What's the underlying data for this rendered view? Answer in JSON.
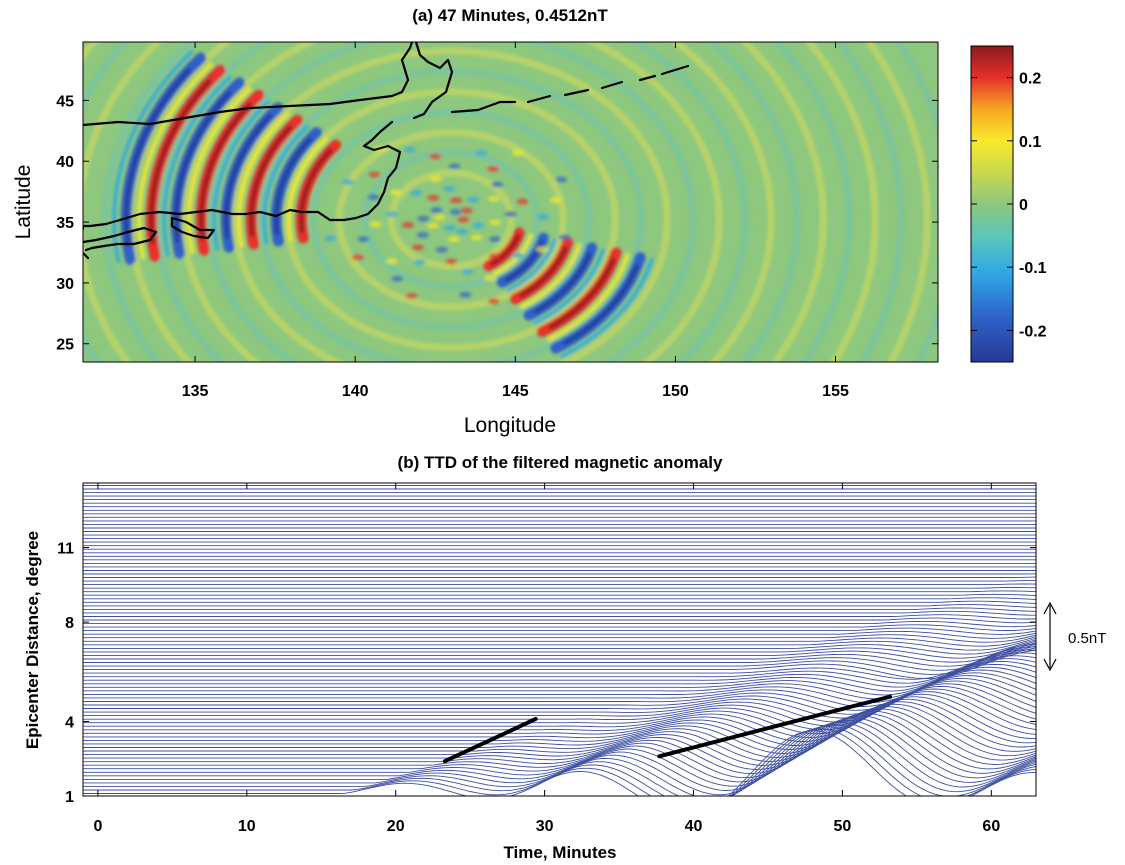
{
  "chart_data": [
    {
      "type": "heatmap",
      "title": "(a) 47 Minutes, 0.4512nT",
      "xlabel": "Longitude",
      "ylabel": "Latitude",
      "xlim": [
        131.5,
        158.2
      ],
      "ylim": [
        23.5,
        49.8
      ],
      "xticks": [
        135,
        140,
        145,
        150,
        155
      ],
      "yticks": [
        25,
        30,
        35,
        40,
        45
      ],
      "colormap": "jet",
      "colorbar": {
        "range": [
          -0.25,
          0.25
        ],
        "ticks": [
          0.2,
          0.1,
          0,
          -0.1,
          -0.2
        ],
        "tick_labels": [
          "0.2",
          "0.1",
          "0",
          "-0.1",
          "-0.2"
        ]
      },
      "epicenter": {
        "lon": 143.0,
        "lat": 35.2
      },
      "colors": {
        "background": "#8ec77e",
        "coast": "#000000"
      }
    },
    {
      "type": "line",
      "title": "(b) TTD of the filtered magnetic anomaly",
      "xlabel": "Time, Minutes",
      "ylabel": "Epicenter Distance, degree",
      "xlim": [
        -1,
        63
      ],
      "ylim": [
        1,
        13.6
      ],
      "xticks": [
        0,
        10,
        20,
        30,
        40,
        50,
        60
      ],
      "yticks": [
        1,
        4,
        8,
        11
      ],
      "trace_count": 88,
      "trace_color": "#3d4fa0",
      "fit_lines": [
        {
          "x": [
            23.3,
            29.4
          ],
          "y": [
            2.4,
            4.1
          ]
        },
        {
          "x": [
            37.7,
            53.2
          ],
          "y": [
            2.6,
            5.0
          ]
        }
      ],
      "scale_bar": {
        "label": "0.5nT",
        "value_nT": 0.5
      }
    }
  ]
}
